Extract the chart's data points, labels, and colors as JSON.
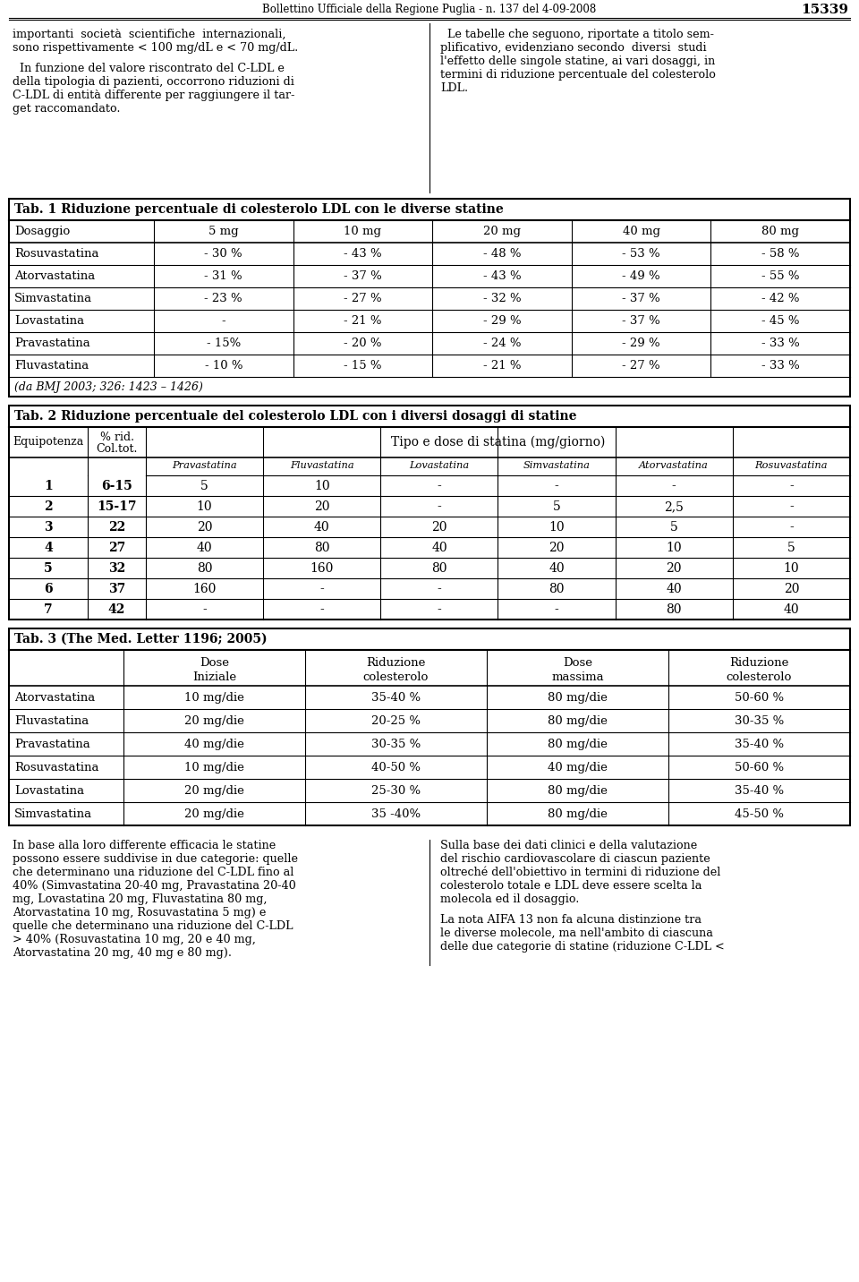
{
  "header_title": "Bollettino Ufficiale della Regione Puglia - n. 137 del 4-09-2008",
  "header_number": "15339",
  "col1_para1": "importanti  società  scientifiche  internazionali,\nsono rispettivamente < 100 mg/dL e < 70 mg/dL.",
  "col1_para2": "  In funzione del valore riscontrato del C-LDL e\ndella tipologia di pazienti, occorrono riduzioni di\nC-LDL di entità differente per raggiungere il tar-\nget raccomandato.",
  "col2_para1": "  Le tabelle che seguono, riportate a titolo sem-\nplificativo, evidenziano secondo  diversi  studi\nl'effetto delle singole statine, ai vari dosaggi, in\ntermini di riduzione percentuale del colesterolo\nLDL.",
  "tab1_title": "Tab. 1 Riduzione percentuale di colesterolo LDL con le diverse statine",
  "tab1_header": [
    "Dosaggio",
    "5 mg",
    "10 mg",
    "20 mg",
    "40 mg",
    "80 mg"
  ],
  "tab1_rows": [
    [
      "Rosuvastatina",
      "- 30 %",
      "- 43 %",
      "- 48 %",
      "- 53 %",
      "- 58 %"
    ],
    [
      "Atorvastatina",
      "- 31 %",
      "- 37 %",
      "- 43 %",
      "- 49 %",
      "- 55 %"
    ],
    [
      "Simvastatina",
      "- 23 %",
      "- 27 %",
      "- 32 %",
      "- 37 %",
      "- 42 %"
    ],
    [
      "Lovastatina",
      "-",
      "- 21 %",
      "- 29 %",
      "- 37 %",
      "- 45 %"
    ],
    [
      "Pravastatina",
      "- 15%",
      "- 20 %",
      "- 24 %",
      "- 29 %",
      "- 33 %"
    ],
    [
      "Fluvastatina",
      "- 10 %",
      "- 15 %",
      "- 21 %",
      "- 27 %",
      "- 33 %"
    ]
  ],
  "tab1_footnote": "(da BMJ 2003; 326: 1423 – 1426)",
  "tab2_title": "Tab. 2 Riduzione percentuale del colesterolo LDL con i diversi dosaggi di statine",
  "tab2_sub_header": "Tipo e dose di statina (mg/giorno)",
  "tab2_rows": [
    [
      "1",
      "6-15",
      "5",
      "10",
      "-",
      "-",
      "-",
      "-"
    ],
    [
      "2",
      "15-17",
      "10",
      "20",
      "-",
      "5",
      "2,5",
      "-"
    ],
    [
      "3",
      "22",
      "20",
      "40",
      "20",
      "10",
      "5",
      "-"
    ],
    [
      "4",
      "27",
      "40",
      "80",
      "40",
      "20",
      "10",
      "5"
    ],
    [
      "5",
      "32",
      "80",
      "160",
      "80",
      "40",
      "20",
      "10"
    ],
    [
      "6",
      "37",
      "160",
      "-",
      "-",
      "80",
      "40",
      "20"
    ],
    [
      "7",
      "42",
      "-",
      "-",
      "-",
      "-",
      "80",
      "40"
    ]
  ],
  "tab2_drug_names": [
    "Pravastatina",
    "Fluvastatina",
    "Lovastatina",
    "Simvastatina",
    "Atorvastatina",
    "Rosuvastatina"
  ],
  "tab3_title": "Tab. 3 (The Med. Letter 1196; 2005)",
  "tab3_header": [
    "",
    "Dose\nIniziale",
    "Riduzione\ncolesterolo",
    "Dose\nmassima",
    "Riduzione\ncolesterolo"
  ],
  "tab3_rows": [
    [
      "Atorvastatina",
      "10 mg/die",
      "35-40 %",
      "80 mg/die",
      "50-60 %"
    ],
    [
      "Fluvastatina",
      "20 mg/die",
      "20-25 %",
      "80 mg/die",
      "30-35 %"
    ],
    [
      "Pravastatina",
      "40 mg/die",
      "30-35 %",
      "80 mg/die",
      "35-40 %"
    ],
    [
      "Rosuvastatina",
      "10 mg/die",
      "40-50 %",
      "40 mg/die",
      "50-60 %"
    ],
    [
      "Lovastatina",
      "20 mg/die",
      "25-30 %",
      "80 mg/die",
      "35-40 %"
    ],
    [
      "Simvastatina",
      "20 mg/die",
      "35 -40%",
      "80 mg/die",
      "45-50 %"
    ]
  ],
  "bottom_col1": "In base alla loro differente efficacia le statine\npossono essere suddivise in due categorie: quelle\nche determinano una riduzione del C-LDL fino al\n40% (Simvastatina 20-40 mg, Pravastatina 20-40\nmg, Lovastatina 20 mg, Fluvastatina 80 mg,\nAtorvastatina 10 mg, Rosuvastatina 5 mg) e\nquelle che determinano una riduzione del C-LDL\n> 40% (Rosuvastatina 10 mg, 20 e 40 mg,\nAtorvastatina 20 mg, 40 mg e 80 mg).",
  "bottom_col2": "Sulla base dei dati clinici e della valutazione\ndel rischio cardiovascolare di ciascun paziente\noltreché dell'obiettivo in termini di riduzione del\ncolesterolo totale e LDL deve essere scelta la\nmolecola ed il dosaggio.\n\nLa nota AIFA 13 non fa alcuna distinzione tra\nle diverse molecole, ma nell'ambito di ciascuna\ndelle due categorie di statine (riduzione C-LDL <"
}
